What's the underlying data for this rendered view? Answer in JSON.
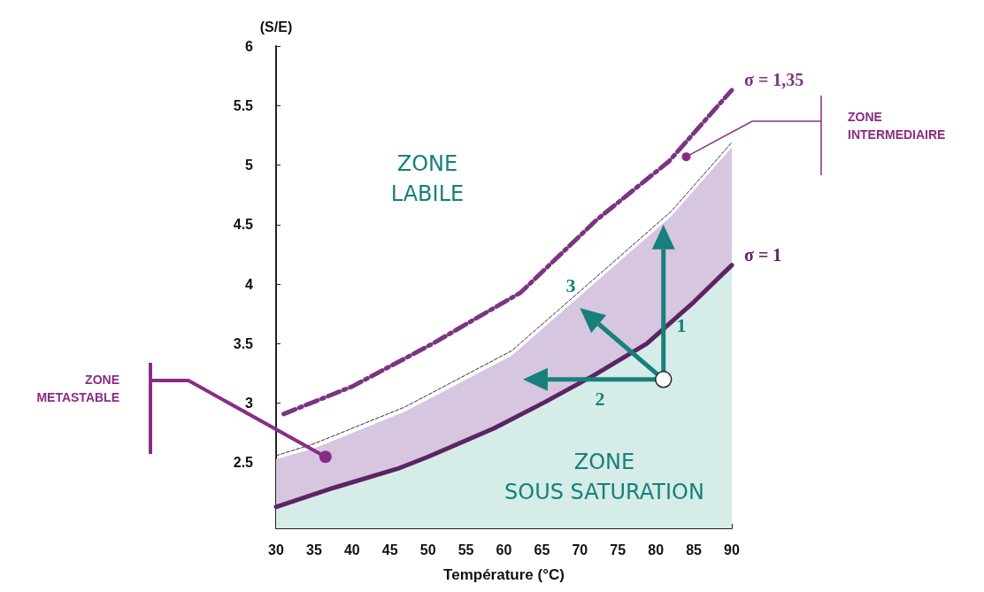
{
  "chart_data": {
    "type": "line",
    "xlabel": "Température (°C)",
    "ylabel": "(S/E)",
    "xlim": [
      30,
      90
    ],
    "xticks": [
      30,
      35,
      40,
      45,
      50,
      55,
      60,
      65,
      70,
      75,
      80,
      85,
      90
    ],
    "ylim": [
      1.95,
      6
    ],
    "yticks": [
      2.5,
      3,
      3.5,
      4,
      4.5,
      5,
      5.5,
      6
    ],
    "grid": false,
    "legend": false,
    "marker": "none",
    "series": [
      {
        "type": "area",
        "name": "σ = 1",
        "color": "#5e2363",
        "line_style": "solid",
        "x": [
          30,
          37.6,
          46,
          50,
          58.7,
          65.4,
          72,
          78.8,
          85,
          90
        ],
        "values": [
          2.13,
          2.29,
          2.45,
          2.55,
          2.79,
          3.01,
          3.24,
          3.5,
          3.85,
          4.16
        ]
      },
      {
        "name": "σ = 1,35",
        "color": "#7b3482",
        "line_style": "dashed",
        "x": [
          31,
          40,
          50.6,
          62.2,
          72.2,
          81.7,
          90
        ],
        "values": [
          2.91,
          3.14,
          3.5,
          3.93,
          4.54,
          5.03,
          5.63
        ]
      },
      {
        "color": "#333333",
        "line_style": "dashed",
        "x": [
          30,
          35,
          47,
          61,
          70,
          82,
          90
        ],
        "values": [
          2.56,
          2.66,
          2.97,
          3.44,
          3.94,
          4.61,
          5.19
        ]
      },
      {
        "type": "area",
        "color": "#d6c6e0",
        "x": [
          30,
          35,
          47,
          61,
          70,
          82,
          90
        ],
        "values": [
          2.53,
          2.62,
          2.93,
          3.4,
          3.9,
          4.57,
          5.15
        ]
      }
    ],
    "annotations": [
      "1",
      "2",
      "3",
      "ZONE\nLABILE",
      "ZONE\nSOUS SATURATION",
      "ZONE\nMETASTABLE",
      "ZONE\nINTERMEDIAIRE"
    ]
  }
}
